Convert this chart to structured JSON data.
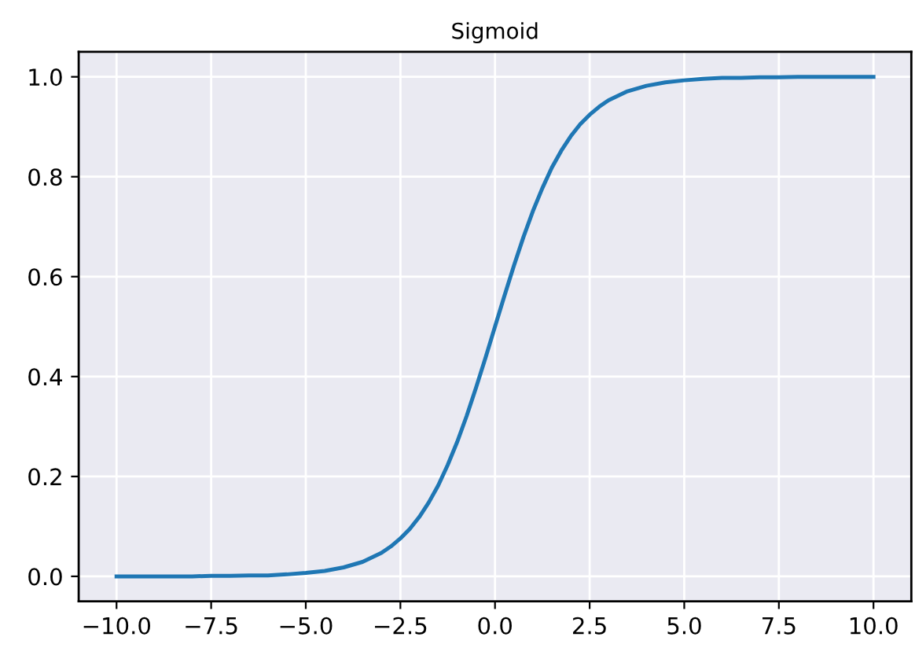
{
  "chart_data": {
    "type": "line",
    "title": "Sigmoid",
    "x": [
      -10,
      -9.5,
      -9,
      -8.5,
      -8,
      -7.5,
      -7,
      -6.5,
      -6,
      -5.5,
      -5,
      -4.5,
      -4,
      -3.5,
      -3,
      -2.75,
      -2.5,
      -2.25,
      -2,
      -1.75,
      -1.5,
      -1.25,
      -1,
      -0.75,
      -0.5,
      -0.25,
      0,
      0.25,
      0.5,
      0.75,
      1,
      1.25,
      1.5,
      1.75,
      2,
      2.25,
      2.5,
      2.75,
      3,
      3.5,
      4,
      4.5,
      5,
      5.5,
      6,
      6.5,
      7,
      7.5,
      8,
      8.5,
      9,
      9.5,
      10
    ],
    "series": [
      {
        "color": "#1f77b4",
        "values": [
          0.0,
          0.0,
          0.0,
          0.0,
          0.0,
          0.001,
          0.001,
          0.002,
          0.002,
          0.004,
          0.007,
          0.011,
          0.018,
          0.029,
          0.047,
          0.06,
          0.076,
          0.095,
          0.119,
          0.148,
          0.182,
          0.223,
          0.269,
          0.321,
          0.378,
          0.438,
          0.5,
          0.562,
          0.622,
          0.679,
          0.731,
          0.777,
          0.818,
          0.852,
          0.881,
          0.905,
          0.924,
          0.94,
          0.953,
          0.971,
          0.982,
          0.989,
          0.993,
          0.996,
          0.998,
          0.998,
          0.999,
          0.999,
          1.0,
          1.0,
          1.0,
          1.0,
          1.0
        ]
      }
    ],
    "xlim": [
      -11,
      11
    ],
    "ylim": [
      -0.05,
      1.05
    ],
    "xticks": [
      {
        "value": -10,
        "label": "−10.0"
      },
      {
        "value": -7.5,
        "label": "−7.5"
      },
      {
        "value": -5,
        "label": "−5.0"
      },
      {
        "value": -2.5,
        "label": "−2.5"
      },
      {
        "value": 0,
        "label": "0.0"
      },
      {
        "value": 2.5,
        "label": "2.5"
      },
      {
        "value": 5,
        "label": "5.0"
      },
      {
        "value": 7.5,
        "label": "7.5"
      },
      {
        "value": 10,
        "label": "10.0"
      }
    ],
    "yticks": [
      {
        "value": 0,
        "label": "0.0"
      },
      {
        "value": 0.2,
        "label": "0.2"
      },
      {
        "value": 0.4,
        "label": "0.4"
      },
      {
        "value": 0.6,
        "label": "0.6"
      },
      {
        "value": 0.8,
        "label": "0.8"
      },
      {
        "value": 1,
        "label": "1.0"
      }
    ],
    "grid": true
  }
}
